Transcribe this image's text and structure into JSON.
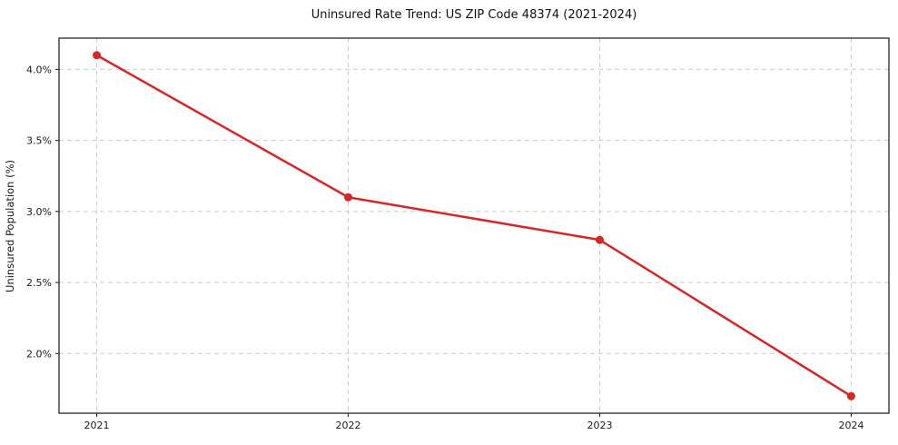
{
  "chart_data": {
    "type": "line",
    "title": "Uninsured Rate Trend: US ZIP Code 48374 (2021-2024)",
    "xlabel": "",
    "ylabel": "Uninsured Population (%)",
    "x": [
      2021,
      2022,
      2023,
      2024
    ],
    "series": [
      {
        "name": "Uninsured Rate",
        "values": [
          4.1,
          3.1,
          2.8,
          1.7
        ],
        "color": "#d62728",
        "marker": "circle",
        "line_width": 2.5,
        "marker_size": 4.5
      }
    ],
    "x_tick_labels": [
      "2021",
      "2022",
      "2023",
      "2024"
    ],
    "y_ticks": [
      2.0,
      2.5,
      3.0,
      3.5,
      4.0
    ],
    "y_tick_labels": [
      "2.0%",
      "2.5%",
      "3.0%",
      "3.5%",
      "4.0%"
    ],
    "xlim": [
      2020.85,
      2024.15
    ],
    "ylim": [
      1.58,
      4.22
    ],
    "grid": true,
    "grid_dash": "5 4",
    "legend": false,
    "colors": {
      "grid": "#cccccc",
      "spine": "#262626",
      "tick": "#262626",
      "text": "#1a1a1a",
      "background": "#ffffff"
    }
  }
}
